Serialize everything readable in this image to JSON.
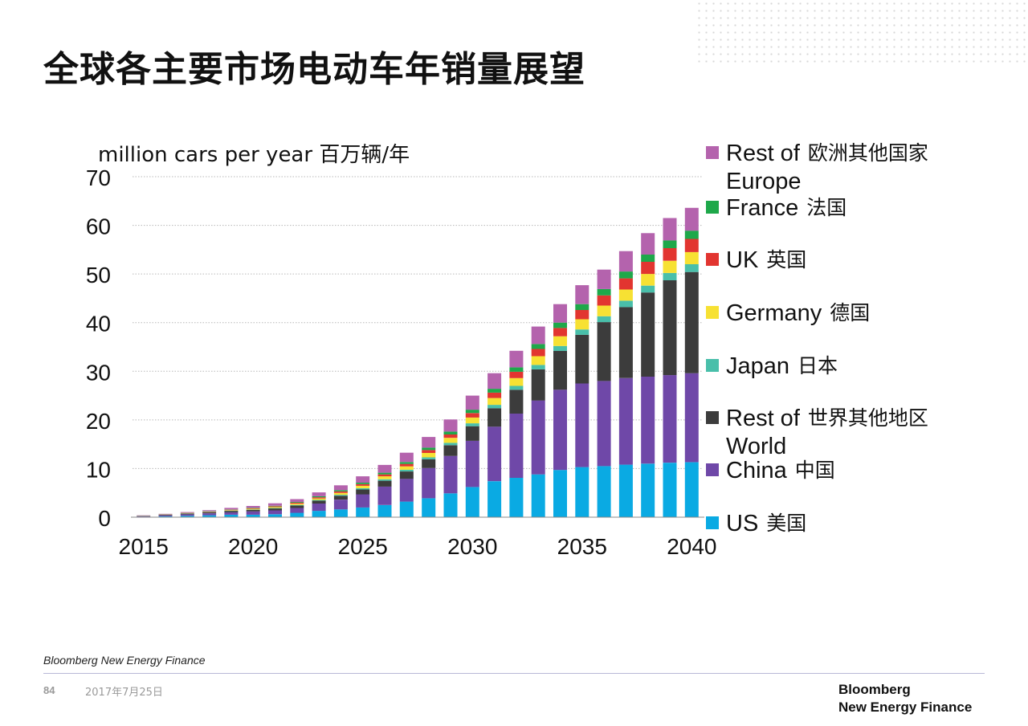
{
  "page": {
    "title": "全球各主要市场电动车年销量展望",
    "source": "Bloomberg New Energy Finance",
    "page_number": "84",
    "date": "2017年7月25日",
    "logo_line1": "Bloomberg",
    "logo_line2": "New Energy Finance"
  },
  "chart_data": {
    "type": "bar",
    "stacked": true,
    "ylabel": "million cars per year 百万辆/年",
    "ylim": [
      0,
      70
    ],
    "yticks": [
      0,
      10,
      20,
      30,
      40,
      50,
      60,
      70
    ],
    "xticks": [
      "2015",
      "2020",
      "2025",
      "2030",
      "2035",
      "2040"
    ],
    "grid": true,
    "legend_position": "right",
    "categories": [
      "2015",
      "2016",
      "2017",
      "2018",
      "2019",
      "2020",
      "2021",
      "2022",
      "2023",
      "2024",
      "2025",
      "2026",
      "2027",
      "2028",
      "2029",
      "2030",
      "2031",
      "2032",
      "2033",
      "2034",
      "2035",
      "2036",
      "2037",
      "2038",
      "2039",
      "2040"
    ],
    "series": [
      {
        "name": "US 美国",
        "legend_line1": "US",
        "legend_line2": "美国",
        "color": "#0aaae3",
        "values": [
          0.1,
          0.2,
          0.3,
          0.4,
          0.5,
          0.5,
          0.6,
          0.9,
          1.3,
          1.6,
          2.0,
          2.5,
          3.2,
          3.9,
          4.9,
          6.2,
          7.4,
          8.1,
          8.8,
          9.7,
          10.3,
          10.5,
          10.8,
          11.0,
          11.2,
          11.3
        ]
      },
      {
        "name": "China 中国",
        "legend_line1": "China",
        "legend_line2": "中国",
        "color": "#6f48a8",
        "values": [
          0.1,
          0.2,
          0.3,
          0.4,
          0.5,
          0.7,
          0.8,
          1.0,
          1.5,
          2.0,
          2.7,
          3.8,
          4.7,
          6.2,
          7.7,
          9.5,
          11.2,
          13.2,
          15.2,
          16.5,
          17.2,
          17.5,
          17.8,
          17.9,
          18.0,
          18.3
        ]
      },
      {
        "name": "Rest of World 世界其他地区",
        "legend_line1": "Rest of",
        "legend_line2": "世界其他地区",
        "legend_line3": "World",
        "color": "#3c3c3c",
        "values": [
          0.05,
          0.1,
          0.15,
          0.2,
          0.3,
          0.3,
          0.4,
          0.5,
          0.6,
          0.8,
          1.0,
          1.2,
          1.5,
          1.8,
          2.2,
          3.0,
          3.8,
          4.9,
          6.4,
          8.0,
          10.0,
          12.1,
          14.6,
          17.3,
          19.5,
          20.8
        ]
      },
      {
        "name": "Japan 日本",
        "legend_line1": "Japan",
        "legend_line2": "日本",
        "color": "#49bfaa",
        "values": [
          0.02,
          0.03,
          0.04,
          0.05,
          0.06,
          0.08,
          0.1,
          0.12,
          0.15,
          0.2,
          0.25,
          0.3,
          0.35,
          0.4,
          0.5,
          0.6,
          0.7,
          0.8,
          0.9,
          1.0,
          1.1,
          1.2,
          1.3,
          1.4,
          1.5,
          1.6
        ]
      },
      {
        "name": "Germany 德国",
        "legend_line1": "Germany",
        "legend_line2": "德国",
        "color": "#f7e133",
        "values": [
          0.02,
          0.03,
          0.05,
          0.07,
          0.1,
          0.15,
          0.2,
          0.25,
          0.3,
          0.4,
          0.5,
          0.6,
          0.7,
          0.9,
          1.0,
          1.2,
          1.4,
          1.6,
          1.8,
          2.0,
          2.1,
          2.2,
          2.3,
          2.4,
          2.5,
          2.5
        ]
      },
      {
        "name": "UK 英国",
        "legend_line1": "UK",
        "legend_line2": "英国",
        "color": "#e23530",
        "values": [
          0.02,
          0.03,
          0.05,
          0.06,
          0.08,
          0.1,
          0.15,
          0.2,
          0.25,
          0.3,
          0.35,
          0.4,
          0.5,
          0.6,
          0.7,
          0.9,
          1.1,
          1.3,
          1.5,
          1.7,
          1.9,
          2.1,
          2.3,
          2.5,
          2.6,
          2.7
        ]
      },
      {
        "name": "France 法国",
        "legend_line1": "France",
        "legend_line2": "法国",
        "color": "#1ea84a",
        "values": [
          0.02,
          0.03,
          0.04,
          0.05,
          0.07,
          0.08,
          0.1,
          0.15,
          0.2,
          0.25,
          0.3,
          0.35,
          0.4,
          0.5,
          0.6,
          0.7,
          0.8,
          0.9,
          1.0,
          1.1,
          1.2,
          1.3,
          1.4,
          1.5,
          1.6,
          1.7
        ]
      },
      {
        "name": "Rest of Europe 欧洲其他国家",
        "legend_line1": "Rest of",
        "legend_line2": "欧洲其他国家",
        "legend_line3": "Europe",
        "color": "#b463ad",
        "values": [
          0.05,
          0.08,
          0.12,
          0.2,
          0.3,
          0.4,
          0.5,
          0.6,
          0.8,
          1.0,
          1.3,
          1.6,
          1.9,
          2.2,
          2.5,
          2.9,
          3.2,
          3.4,
          3.6,
          3.8,
          3.9,
          4.0,
          4.2,
          4.4,
          4.6,
          4.7
        ]
      }
    ]
  }
}
